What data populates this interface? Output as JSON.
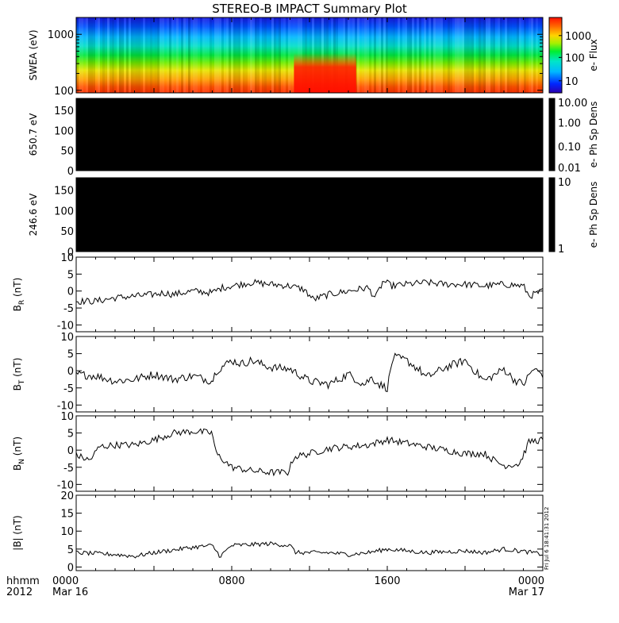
{
  "chart_data": {
    "type": "line",
    "title": "STEREO-B IMPACT Summary Plot",
    "x_ticks": [
      {
        "t": 0,
        "top": "0000",
        "bottom": "Mar 16"
      },
      {
        "t": 8,
        "top": "0800",
        "bottom": ""
      },
      {
        "t": 16,
        "top": "1600",
        "bottom": ""
      },
      {
        "t": 24,
        "top": "0000",
        "bottom": "Mar 17"
      }
    ],
    "x_range_hours": [
      0,
      24
    ],
    "x_corner_label": {
      "line1": "hhmm",
      "line2": "2012"
    },
    "timestamp_label": "Fri Jul 6 18:41:31 2012",
    "panels": [
      {
        "id": "swea",
        "kind": "spectrogram",
        "ylabel": "SWEA (eV)",
        "yscale": "log",
        "ylim": [
          90,
          2000
        ],
        "yticks": [
          {
            "v": 100,
            "label": "100"
          },
          {
            "v": 1000,
            "label": "1000"
          }
        ],
        "colorbar": {
          "label": "e- Flux",
          "scale": "log",
          "ticks": [
            "1000",
            "100",
            "10"
          ]
        }
      },
      {
        "id": "pad650",
        "kind": "spectrogram",
        "ylabel": "650.7 eV",
        "ylim": [
          0,
          180
        ],
        "yticks": [
          "150",
          "100",
          "50",
          "0"
        ],
        "fill": "#000000",
        "colorbar": {
          "label": "e- Ph Sp Dens",
          "ticks": [
            "10.00",
            "1.00",
            "0.10",
            "0.01"
          ],
          "fill": "#000000"
        }
      },
      {
        "id": "pad246",
        "kind": "spectrogram",
        "ylabel": "246.6 eV",
        "ylim": [
          0,
          180
        ],
        "yticks": [
          "150",
          "100",
          "50",
          "0"
        ],
        "fill": "#000000",
        "colorbar": {
          "label": "e- Ph Sp Dens",
          "ticks": [
            "10",
            "1"
          ],
          "fill": "#000000"
        }
      },
      {
        "id": "br",
        "kind": "line",
        "ylabel": "B",
        "ylabel_sub": "R",
        "ylabel_unit": "(nT)",
        "ylim": [
          -12,
          10
        ],
        "yticks": [
          10,
          5,
          0,
          -5,
          -10
        ],
        "keys": [
          [
            0,
            -3
          ],
          [
            1,
            -3
          ],
          [
            2,
            -2
          ],
          [
            3,
            -1.5
          ],
          [
            4,
            -1
          ],
          [
            4.5,
            -0.5
          ],
          [
            5,
            -1
          ],
          [
            6,
            0
          ],
          [
            7,
            -0.5
          ],
          [
            7.5,
            1
          ],
          [
            8,
            1.5
          ],
          [
            9,
            2.5
          ],
          [
            10,
            2
          ],
          [
            11,
            1.5
          ],
          [
            11.7,
            0.5
          ],
          [
            12.2,
            -2.5
          ],
          [
            13,
            -1
          ],
          [
            14,
            0
          ],
          [
            15,
            1
          ],
          [
            15.4,
            -2
          ],
          [
            15.8,
            3
          ],
          [
            16.2,
            1.5
          ],
          [
            17,
            2
          ],
          [
            18,
            2.5
          ],
          [
            19,
            2
          ],
          [
            20,
            2
          ],
          [
            21,
            1.5
          ],
          [
            22,
            2
          ],
          [
            23,
            1.5
          ],
          [
            23.3,
            -1.5
          ],
          [
            24,
            0
          ]
        ],
        "noise": 1.0
      },
      {
        "id": "bt",
        "kind": "line",
        "ylabel": "B",
        "ylabel_sub": "T",
        "ylabel_unit": "(nT)",
        "ylim": [
          -12,
          10
        ],
        "yticks": [
          10,
          5,
          0,
          -5,
          -10
        ],
        "keys": [
          [
            0,
            -1
          ],
          [
            1,
            -1.5
          ],
          [
            2,
            -3
          ],
          [
            3,
            -2.5
          ],
          [
            4,
            -1
          ],
          [
            5,
            -2.5
          ],
          [
            6,
            -1.5
          ],
          [
            7,
            -3
          ],
          [
            7.2,
            0
          ],
          [
            8,
            3
          ],
          [
            8.5,
            2
          ],
          [
            9,
            3
          ],
          [
            10,
            1
          ],
          [
            11,
            0.5
          ],
          [
            12,
            -3
          ],
          [
            13,
            -4
          ],
          [
            14,
            -1
          ],
          [
            14.8,
            -4
          ],
          [
            15.2,
            -2
          ],
          [
            15.6,
            -4
          ],
          [
            16,
            -5
          ],
          [
            16.3,
            4
          ],
          [
            17,
            3
          ],
          [
            17.7,
            0
          ],
          [
            18,
            -2
          ],
          [
            19,
            1
          ],
          [
            20,
            3
          ],
          [
            21,
            -3
          ],
          [
            22,
            0.5
          ],
          [
            22.5,
            -2.5
          ],
          [
            23,
            -4
          ],
          [
            23.5,
            0.5
          ],
          [
            24,
            -1
          ]
        ],
        "noise": 1.2
      },
      {
        "id": "bn",
        "kind": "line",
        "ylabel": "B",
        "ylabel_sub": "N",
        "ylabel_unit": "(nT)",
        "ylim": [
          -12,
          10
        ],
        "yticks": [
          10,
          5,
          0,
          -5,
          -10
        ],
        "keys": [
          [
            0,
            -1.5
          ],
          [
            0.7,
            -3
          ],
          [
            1.2,
            1
          ],
          [
            2,
            1.5
          ],
          [
            3,
            1.5
          ],
          [
            4,
            3
          ],
          [
            5,
            5
          ],
          [
            6,
            5.5
          ],
          [
            7,
            5
          ],
          [
            7.2,
            -1
          ],
          [
            8,
            -5
          ],
          [
            9,
            -6
          ],
          [
            10,
            -6.5
          ],
          [
            10.9,
            -6.5
          ],
          [
            11.2,
            -2
          ],
          [
            12,
            -1
          ],
          [
            13,
            0.5
          ],
          [
            14,
            1
          ],
          [
            15,
            1.5
          ],
          [
            16,
            3
          ],
          [
            17,
            2
          ],
          [
            18,
            1
          ],
          [
            19,
            0
          ],
          [
            20,
            -1
          ],
          [
            21,
            -1
          ],
          [
            21.5,
            -3
          ],
          [
            22,
            -4.5
          ],
          [
            22.8,
            -4
          ],
          [
            23.3,
            2.5
          ],
          [
            24,
            3
          ]
        ],
        "noise": 1.0
      },
      {
        "id": "bmag",
        "kind": "line",
        "ylabel": "|B| (nT)",
        "ylim": [
          -1,
          20
        ],
        "yticks": [
          20,
          15,
          10,
          5,
          0
        ],
        "keys": [
          [
            0,
            4
          ],
          [
            2,
            3.5
          ],
          [
            3,
            3
          ],
          [
            4,
            4
          ],
          [
            6,
            5.5
          ],
          [
            7,
            6
          ],
          [
            7.4,
            3
          ],
          [
            8,
            6
          ],
          [
            10,
            6.5
          ],
          [
            11,
            6
          ],
          [
            11.3,
            4
          ],
          [
            13,
            4
          ],
          [
            14,
            3.5
          ],
          [
            15,
            4
          ],
          [
            16,
            5
          ],
          [
            18,
            4
          ],
          [
            20,
            4.5
          ],
          [
            21,
            4
          ],
          [
            22,
            5
          ],
          [
            23.5,
            4
          ],
          [
            24,
            3.5
          ]
        ],
        "noise": 0.6
      }
    ]
  }
}
